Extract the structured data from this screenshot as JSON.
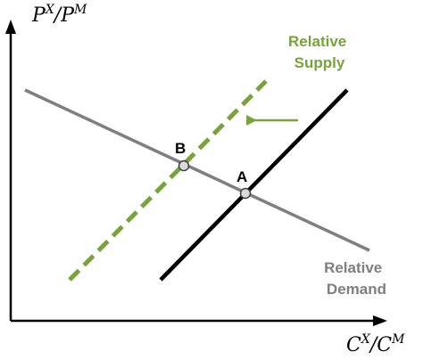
{
  "axes": {
    "y_label": {
      "base1": "P",
      "sup1": "X",
      "slash": "/",
      "base2": "P",
      "sup2": "M"
    },
    "x_label": {
      "base1": "C",
      "sup1": "X",
      "slash": "/",
      "base2": "C",
      "sup2": "M"
    }
  },
  "curves": {
    "relative_supply": {
      "label_line1": "Relative",
      "label_line2": "Supply",
      "color": "#77a33b",
      "style": "dashed"
    },
    "original_supply": {
      "color": "#000000",
      "style": "solid"
    },
    "relative_demand": {
      "label_line1": "Relative",
      "label_line2": "Demand",
      "color": "#7f7f7f",
      "style": "solid"
    }
  },
  "points": {
    "A": {
      "label": "A"
    },
    "B": {
      "label": "B"
    }
  },
  "shift_arrow": {
    "direction": "left",
    "color": "#77a33b"
  }
}
